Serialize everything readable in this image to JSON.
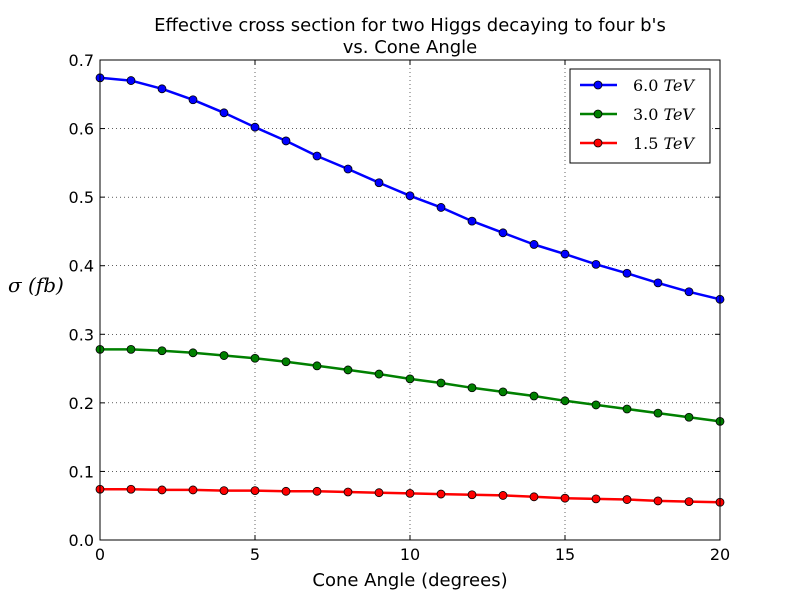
{
  "chart_data": {
    "type": "line",
    "title": "Effective cross section for two Higgs decaying to four b's",
    "subtitle": "vs. Cone Angle",
    "xlabel": "Cone Angle (degrees)",
    "ylabel": "σ (fb)",
    "xlim": [
      0,
      20
    ],
    "ylim": [
      0.0,
      0.7
    ],
    "xticks": [
      0,
      5,
      10,
      15,
      20
    ],
    "xtick_labels": [
      "0",
      "5",
      "10",
      "15",
      "20"
    ],
    "yticks": [
      0.0,
      0.1,
      0.2,
      0.3,
      0.4,
      0.5,
      0.6,
      0.7
    ],
    "ytick_labels": [
      "0.0",
      "0.1",
      "0.2",
      "0.3",
      "0.4",
      "0.5",
      "0.6",
      "0.7"
    ],
    "grid": true,
    "legend_position": "top-right",
    "x": [
      0,
      1,
      2,
      3,
      4,
      5,
      6,
      7,
      8,
      9,
      10,
      11,
      12,
      13,
      14,
      15,
      16,
      17,
      18,
      19,
      20
    ],
    "series": [
      {
        "name": "6.0 TeV",
        "name_value": "6.0",
        "name_unit": "TeV",
        "color": "#0000ff",
        "values": [
          0.674,
          0.67,
          0.658,
          0.642,
          0.623,
          0.602,
          0.582,
          0.56,
          0.541,
          0.521,
          0.502,
          0.485,
          0.465,
          0.448,
          0.431,
          0.417,
          0.402,
          0.389,
          0.375,
          0.362,
          0.351
        ]
      },
      {
        "name": "3.0 TeV",
        "name_value": "3.0",
        "name_unit": "TeV",
        "color": "#008000",
        "values": [
          0.278,
          0.278,
          0.276,
          0.273,
          0.269,
          0.265,
          0.26,
          0.254,
          0.248,
          0.242,
          0.235,
          0.229,
          0.222,
          0.216,
          0.21,
          0.203,
          0.197,
          0.191,
          0.185,
          0.179,
          0.173
        ]
      },
      {
        "name": "1.5 TeV",
        "name_value": "1.5",
        "name_unit": "TeV",
        "color": "#ff0000",
        "values": [
          0.074,
          0.074,
          0.073,
          0.073,
          0.072,
          0.072,
          0.071,
          0.071,
          0.07,
          0.069,
          0.068,
          0.067,
          0.066,
          0.065,
          0.063,
          0.061,
          0.06,
          0.059,
          0.057,
          0.056,
          0.055
        ]
      }
    ]
  }
}
